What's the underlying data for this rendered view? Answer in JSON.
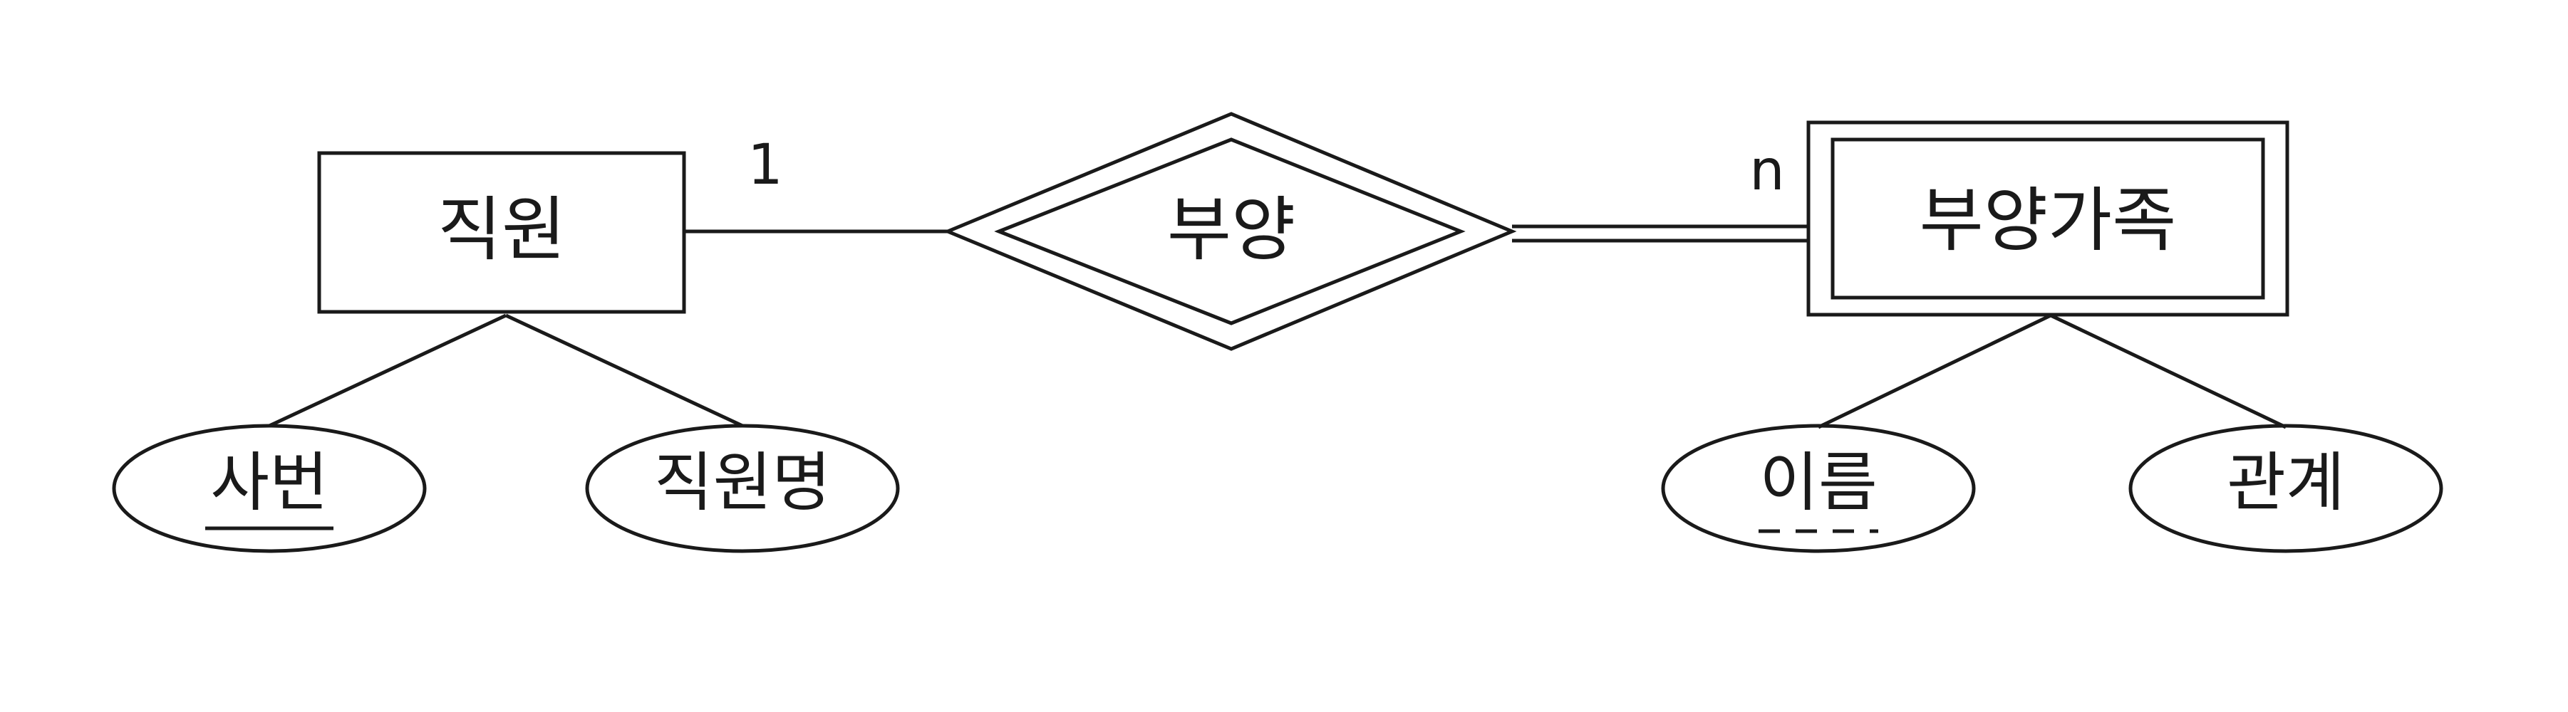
{
  "entities": {
    "employee": {
      "label": "직원"
    },
    "dependent": {
      "label": "부양가족"
    }
  },
  "relationship": {
    "label": "부양"
  },
  "cardinality": {
    "employee_side": "1",
    "dependent_side": "n"
  },
  "attributes": {
    "employee_id": {
      "label": "사번"
    },
    "employee_name": {
      "label": "직원명"
    },
    "dependent_name": {
      "label": "이름"
    },
    "relation": {
      "label": "관계"
    }
  },
  "colors": {
    "stroke": "#1a1a1a",
    "background": "#ffffff"
  }
}
